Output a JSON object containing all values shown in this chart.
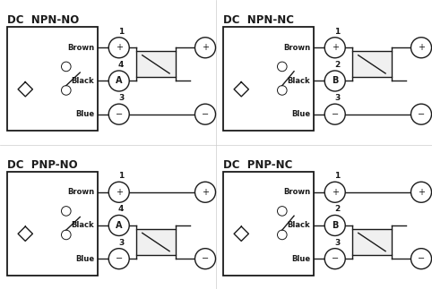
{
  "bg": "#ffffff",
  "lc": "#1a1a1a",
  "lw": 1.0,
  "diagrams": [
    {
      "title": "DC  NPN-NO",
      "col": 0,
      "row": 0,
      "wire_colors": [
        "Brown",
        "Black",
        "Blue"
      ],
      "pins": [
        "1",
        "4",
        "3"
      ],
      "mid_label": "A",
      "switch": "NO",
      "load_between": "top_mid",
      "out_circle_row": 0,
      "minus_extends": true
    },
    {
      "title": "DC  NPN-NC",
      "col": 1,
      "row": 0,
      "wire_colors": [
        "Brown",
        "Black",
        "Blue"
      ],
      "pins": [
        "1",
        "2",
        "3"
      ],
      "mid_label": "B",
      "switch": "NC",
      "load_between": "top_mid",
      "out_circle_row": 0,
      "minus_extends": true
    },
    {
      "title": "DC  PNP-NO",
      "col": 0,
      "row": 1,
      "wire_colors": [
        "Brown",
        "Black",
        "Blue"
      ],
      "pins": [
        "1",
        "4",
        "3"
      ],
      "mid_label": "A",
      "switch": "NO",
      "load_between": "mid_bot",
      "out_circle_row": 2,
      "plus_extends": true
    },
    {
      "title": "DC  PNP-NC",
      "col": 1,
      "row": 1,
      "wire_colors": [
        "Brown",
        "Black",
        "Blue"
      ],
      "pins": [
        "1",
        "2",
        "3"
      ],
      "mid_label": "B",
      "switch": "NC",
      "load_between": "mid_bot",
      "out_circle_row": 2,
      "plus_extends": true
    }
  ]
}
